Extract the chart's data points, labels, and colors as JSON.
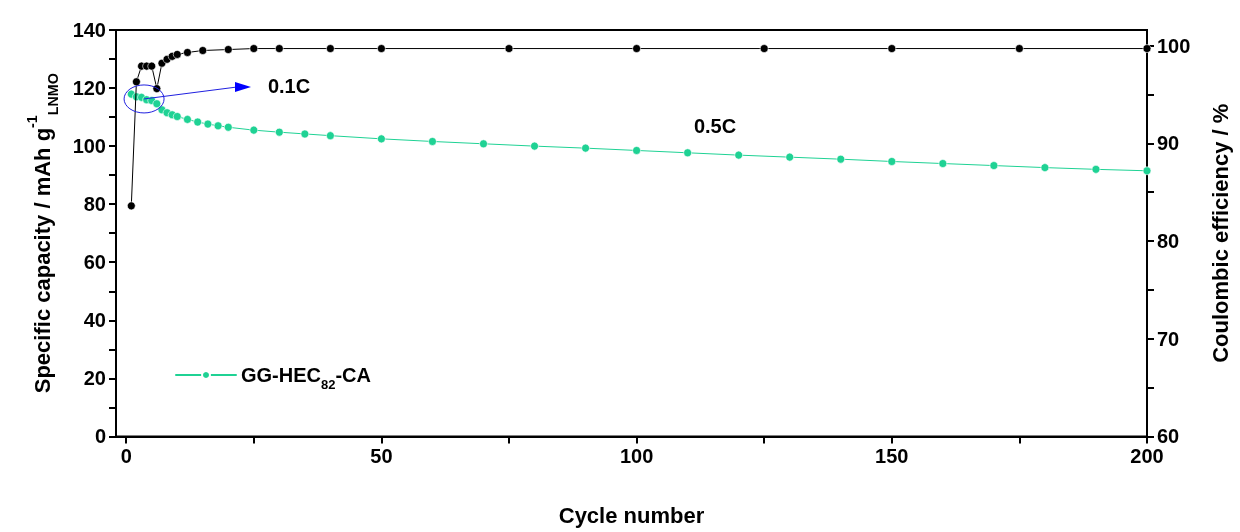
{
  "chart_data": {
    "type": "line",
    "xlabel": "Cycle number",
    "ylabel": "Specific capacity / mAh g$^{-1}$$_{LNMO}$",
    "y2label": "Coulombic efficiency / %",
    "xlim": [
      -2,
      200
    ],
    "xticks": [
      0,
      {
        "value": 25,
        "label": null
      },
      50,
      {
        "value": 75,
        "label": null
      },
      100,
      {
        "value": 125,
        "label": null
      },
      150,
      {
        "value": 175,
        "label": null
      },
      200
    ],
    "ylim": [
      0,
      140
    ],
    "yticks": [
      0,
      {
        "value": 10,
        "label": null
      },
      20,
      {
        "value": 30,
        "label": null
      },
      40,
      {
        "value": 50,
        "label": null
      },
      60,
      {
        "value": 70,
        "label": null
      },
      80,
      {
        "value": 90,
        "label": null
      },
      100,
      {
        "value": 110,
        "label": null
      },
      120,
      {
        "value": 130,
        "label": null
      },
      140
    ],
    "y2lim": [
      60,
      101.6
    ],
    "y2ticks": [
      60,
      {
        "value": 65,
        "label": null
      },
      70,
      {
        "value": 75,
        "label": null
      },
      80,
      {
        "value": 85,
        "label": null
      },
      90,
      {
        "value": 95,
        "label": null
      },
      100
    ],
    "grid": false,
    "legend": "bottom left",
    "marker": "circle",
    "line_style": "solid",
    "annotations": [
      "0.1C",
      "0.5C"
    ],
    "series": [
      {
        "name": "GG-HEC$_{82}$-CA",
        "color": "#1fd294",
        "x": [
          1,
          2,
          3,
          4,
          5,
          6,
          7,
          8,
          9,
          10,
          12,
          14,
          16,
          18,
          20,
          25,
          30,
          35,
          40,
          50,
          60,
          70,
          80,
          90,
          100,
          110,
          120,
          130,
          140,
          150,
          160,
          170,
          180,
          190,
          200
        ],
        "values": [
          117.9,
          117,
          116.8,
          116,
          115.7,
          114.6,
          112.5,
          111.5,
          110.8,
          110.2,
          109.2,
          108.3,
          107.6,
          107,
          106.5,
          105.5,
          104.8,
          104.2,
          103.6,
          102.5,
          101.6,
          100.8,
          100,
          99.3,
          98.5,
          97.7,
          96.9,
          96.2,
          95.5,
          94.7,
          94,
          93.3,
          92.6,
          92,
          91.5
        ]
      },
      {
        "color": "#000000",
        "axis": "y2",
        "x": [
          1,
          2,
          3,
          4,
          5,
          6,
          7,
          8,
          9,
          10,
          12,
          15,
          20,
          25,
          30,
          40,
          50,
          75,
          100,
          125,
          150,
          175,
          200
        ],
        "values": [
          83.6,
          96.3,
          97.9,
          97.9,
          97.9,
          95.6,
          98.2,
          98.6,
          98.9,
          99.1,
          99.3,
          99.5,
          99.6,
          99.7,
          99.7,
          99.7,
          99.7,
          99.7,
          99.7,
          99.7,
          99.7,
          99.7,
          99.7
        ]
      }
    ]
  }
}
